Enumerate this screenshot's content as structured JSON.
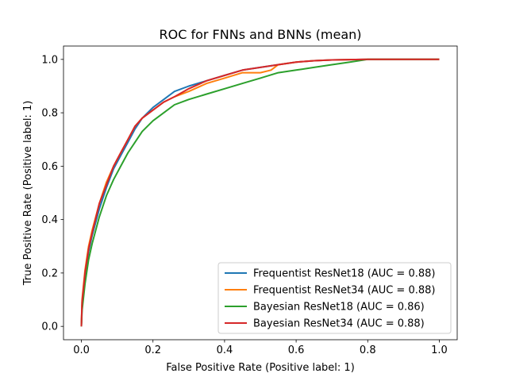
{
  "chart_data": {
    "type": "line",
    "title": "ROC for FNNs and BNNs (mean)",
    "xlabel": "False Positive Rate (Positive label: 1)",
    "ylabel": "True Positive Rate (Positive label: 1)",
    "xlim": [
      -0.05,
      1.05
    ],
    "ylim": [
      -0.05,
      1.05
    ],
    "xticks": [
      "0.0",
      "0.2",
      "0.4",
      "0.6",
      "0.8",
      "1.0"
    ],
    "yticks": [
      "0.0",
      "0.2",
      "0.4",
      "0.6",
      "0.8",
      "1.0"
    ],
    "grid": false,
    "legend_position": "lower-right",
    "series": [
      {
        "name": "Frequentist ResNet18 (AUC = 0.88)",
        "color": "#1f77b4",
        "x": [
          0,
          0.002,
          0.01,
          0.02,
          0.03,
          0.05,
          0.07,
          0.09,
          0.11,
          0.13,
          0.15,
          0.17,
          0.2,
          0.23,
          0.26,
          0.3,
          0.35,
          0.4,
          0.45,
          0.5,
          0.55,
          0.6,
          0.65,
          0.7,
          0.8,
          0.9,
          1.0
        ],
        "y": [
          0,
          0.08,
          0.19,
          0.28,
          0.34,
          0.44,
          0.52,
          0.59,
          0.64,
          0.69,
          0.74,
          0.78,
          0.82,
          0.85,
          0.88,
          0.9,
          0.92,
          0.94,
          0.96,
          0.97,
          0.98,
          0.99,
          0.995,
          0.998,
          1.0,
          1.0,
          1.0
        ]
      },
      {
        "name": "Frequentist ResNet34 (AUC = 0.88)",
        "color": "#ff7f0e",
        "x": [
          0,
          0.002,
          0.01,
          0.02,
          0.03,
          0.05,
          0.07,
          0.09,
          0.11,
          0.13,
          0.15,
          0.17,
          0.2,
          0.23,
          0.26,
          0.3,
          0.35,
          0.4,
          0.45,
          0.5,
          0.53,
          0.55,
          0.6,
          0.65,
          0.7,
          0.8,
          0.9,
          1.0
        ],
        "y": [
          0,
          0.1,
          0.21,
          0.3,
          0.36,
          0.46,
          0.54,
          0.6,
          0.65,
          0.7,
          0.75,
          0.78,
          0.81,
          0.84,
          0.86,
          0.88,
          0.91,
          0.93,
          0.95,
          0.95,
          0.96,
          0.98,
          0.99,
          0.995,
          0.998,
          1.0,
          1.0,
          1.0
        ]
      },
      {
        "name": "Bayesian ResNet18 (AUC = 0.86)",
        "color": "#2ca02c",
        "x": [
          0,
          0.002,
          0.01,
          0.02,
          0.03,
          0.05,
          0.07,
          0.09,
          0.11,
          0.13,
          0.15,
          0.17,
          0.2,
          0.23,
          0.26,
          0.3,
          0.35,
          0.4,
          0.45,
          0.5,
          0.55,
          0.6,
          0.65,
          0.7,
          0.75,
          0.8,
          0.9,
          1.0
        ],
        "y": [
          0,
          0.06,
          0.16,
          0.25,
          0.31,
          0.41,
          0.49,
          0.55,
          0.6,
          0.65,
          0.69,
          0.73,
          0.77,
          0.8,
          0.83,
          0.85,
          0.87,
          0.89,
          0.91,
          0.93,
          0.95,
          0.96,
          0.97,
          0.98,
          0.99,
          1.0,
          1.0,
          1.0
        ]
      },
      {
        "name": "Bayesian ResNet34 (AUC = 0.88)",
        "color": "#d62728",
        "x": [
          0,
          0.002,
          0.01,
          0.02,
          0.03,
          0.05,
          0.07,
          0.09,
          0.11,
          0.13,
          0.15,
          0.17,
          0.2,
          0.23,
          0.26,
          0.3,
          0.35,
          0.4,
          0.45,
          0.5,
          0.55,
          0.6,
          0.65,
          0.7,
          0.8,
          0.9,
          1.0
        ],
        "y": [
          0,
          0.09,
          0.2,
          0.29,
          0.35,
          0.46,
          0.53,
          0.6,
          0.65,
          0.7,
          0.75,
          0.78,
          0.81,
          0.84,
          0.86,
          0.89,
          0.92,
          0.94,
          0.96,
          0.97,
          0.98,
          0.99,
          0.995,
          0.998,
          1.0,
          1.0,
          1.0
        ]
      }
    ]
  }
}
